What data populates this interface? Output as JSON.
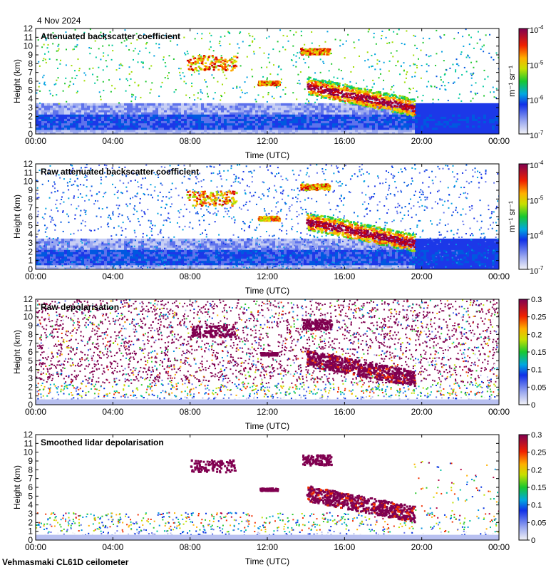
{
  "date": "4 Nov 2024",
  "footer": "Vehmasmaki CL61D ceilometer",
  "chart_data": [
    {
      "type": "heatmap",
      "title": "Attenuated backscatter coefficient",
      "xlabel": "Time (UTC)",
      "ylabel": "Height (km)",
      "x_ticks": [
        "00:00",
        "04:00",
        "08:00",
        "12:00",
        "16:00",
        "20:00",
        "00:00"
      ],
      "y_ticks": [
        "0",
        "1",
        "2",
        "3",
        "4",
        "5",
        "6",
        "7",
        "8",
        "9",
        "10",
        "11",
        "12"
      ],
      "ylim": [
        0,
        12
      ],
      "colorbar": {
        "scale": "log",
        "range": [
          1e-07,
          0.0001
        ],
        "label": "m⁻¹ sr⁻¹",
        "ticks": [
          {
            "b": "10",
            "e": "-4"
          },
          {
            "b": "10",
            "e": "-5"
          },
          {
            "b": "10",
            "e": "-6"
          },
          {
            "b": "10",
            "e": "-7"
          }
        ]
      }
    },
    {
      "type": "heatmap",
      "title": "Raw attenuated backscatter coefficient",
      "xlabel": "Time (UTC)",
      "ylabel": "Height (km)",
      "x_ticks": [
        "00:00",
        "04:00",
        "08:00",
        "12:00",
        "16:00",
        "20:00",
        "00:00"
      ],
      "y_ticks": [
        "0",
        "1",
        "2",
        "3",
        "4",
        "5",
        "6",
        "7",
        "8",
        "9",
        "10",
        "11",
        "12"
      ],
      "ylim": [
        0,
        12
      ],
      "colorbar": {
        "scale": "log",
        "range": [
          1e-07,
          0.0001
        ],
        "label": "m⁻¹ sr⁻¹",
        "ticks": [
          {
            "b": "10",
            "e": "-4"
          },
          {
            "b": "10",
            "e": "-5"
          },
          {
            "b": "10",
            "e": "-6"
          },
          {
            "b": "10",
            "e": "-7"
          }
        ]
      }
    },
    {
      "type": "heatmap",
      "title": "Raw depolarisation",
      "xlabel": "Time (UTC)",
      "ylabel": "Height (km)",
      "x_ticks": [
        "00:00",
        "04:00",
        "08:00",
        "12:00",
        "16:00",
        "20:00",
        "00:00"
      ],
      "y_ticks": [
        "0",
        "1",
        "2",
        "3",
        "4",
        "5",
        "6",
        "7",
        "8",
        "9",
        "10",
        "11",
        "12"
      ],
      "ylim": [
        0,
        12
      ],
      "colorbar": {
        "scale": "linear",
        "range": [
          0,
          0.3
        ],
        "label": "",
        "ticks": [
          "0.3",
          "0.25",
          "0.2",
          "0.15",
          "0.1",
          "0.05",
          "0"
        ]
      }
    },
    {
      "type": "heatmap",
      "title": "Smoothed lidar depolarisation",
      "xlabel": "Time (UTC)",
      "ylabel": "Height (km)",
      "x_ticks": [
        "00:00",
        "04:00",
        "08:00",
        "12:00",
        "16:00",
        "20:00",
        "00:00"
      ],
      "y_ticks": [
        "0",
        "1",
        "2",
        "3",
        "4",
        "5",
        "6",
        "7",
        "8",
        "9",
        "10",
        "11",
        "12"
      ],
      "ylim": [
        0,
        12
      ],
      "colorbar": {
        "scale": "linear",
        "range": [
          0,
          0.3
        ],
        "label": "",
        "ticks": [
          "0.3",
          "0.25",
          "0.2",
          "0.15",
          "0.1",
          "0.05",
          "0"
        ]
      }
    }
  ]
}
